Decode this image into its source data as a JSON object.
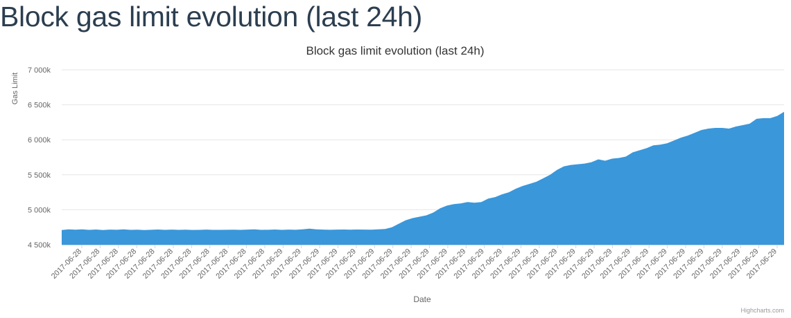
{
  "page": {
    "heading": "Block gas limit evolution (last 24h)",
    "credits": "Highcharts.com"
  },
  "chart_data": {
    "type": "area",
    "title": "Block gas limit evolution (last 24h)",
    "xlabel": "Date",
    "ylabel": "Gas Limit",
    "ylim": [
      4500000,
      7000000
    ],
    "yticks": [
      4500000,
      5000000,
      5500000,
      6000000,
      6500000,
      7000000
    ],
    "ytick_labels": [
      "4 500k",
      "5 000k",
      "5 500k",
      "6 000k",
      "6 500k",
      "7 000k"
    ],
    "grid": true,
    "legend": "none",
    "color": "#3a97da",
    "x_tick_labels": [
      "2017-06-28",
      "2017-06-28",
      "2017-06-28",
      "2017-06-28",
      "2017-06-28",
      "2017-06-28",
      "2017-06-28",
      "2017-06-28",
      "2017-06-28",
      "2017-06-28",
      "2017-06-28",
      "2017-06-29",
      "2017-06-29",
      "2017-06-29",
      "2017-06-29",
      "2017-06-29",
      "2017-06-29",
      "2017-06-29",
      "2017-06-29",
      "2017-06-29",
      "2017-06-29",
      "2017-06-29",
      "2017-06-29",
      "2017-06-29",
      "2017-06-29",
      "2017-06-29",
      "2017-06-29",
      "2017-06-29",
      "2017-06-29",
      "2017-06-29",
      "2017-06-29",
      "2017-06-29",
      "2017-06-29",
      "2017-06-29",
      "2017-06-29",
      "2017-06-29",
      "2017-06-29",
      "2017-06-29",
      "2017-06-29"
    ],
    "values": [
      4710000,
      4720000,
      4715000,
      4720000,
      4712000,
      4718000,
      4710000,
      4716000,
      4714000,
      4720000,
      4712000,
      4715000,
      4710000,
      4714000,
      4718000,
      4712000,
      4716000,
      4713000,
      4715000,
      4711000,
      4712000,
      4716000,
      4713000,
      4712000,
      4714000,
      4715000,
      4713000,
      4716000,
      4720000,
      4713000,
      4714000,
      4718000,
      4713000,
      4716000,
      4714000,
      4720000,
      4730000,
      4720000,
      4716000,
      4714000,
      4716000,
      4718000,
      4715000,
      4718000,
      4716000,
      4715000,
      4720000,
      4725000,
      4750000,
      4800000,
      4850000,
      4880000,
      4900000,
      4920000,
      4960000,
      5020000,
      5060000,
      5080000,
      5090000,
      5110000,
      5100000,
      5110000,
      5160000,
      5180000,
      5220000,
      5250000,
      5300000,
      5340000,
      5370000,
      5400000,
      5450000,
      5500000,
      5570000,
      5620000,
      5640000,
      5650000,
      5660000,
      5680000,
      5720000,
      5700000,
      5730000,
      5740000,
      5760000,
      5820000,
      5850000,
      5880000,
      5920000,
      5930000,
      5950000,
      5990000,
      6030000,
      6060000,
      6100000,
      6140000,
      6160000,
      6170000,
      6170000,
      6160000,
      6190000,
      6210000,
      6230000,
      6300000,
      6310000,
      6310000,
      6340000,
      6400000
    ]
  }
}
